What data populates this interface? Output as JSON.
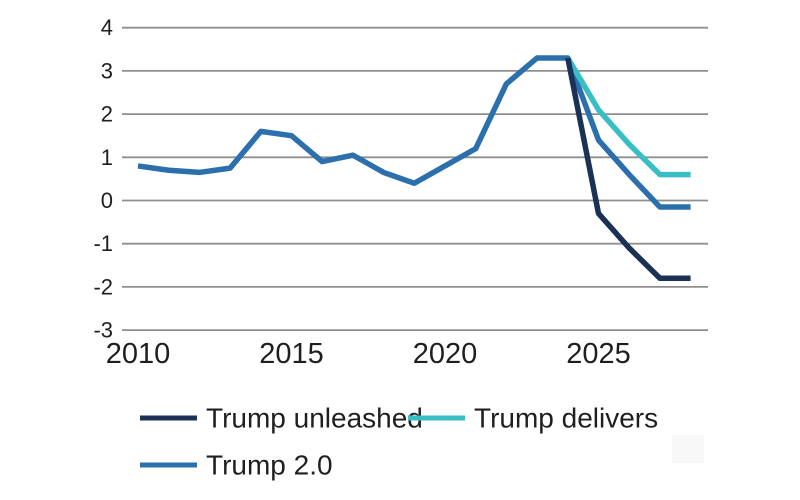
{
  "chart_data": {
    "type": "line",
    "title": "",
    "xlabel": "",
    "ylabel": "",
    "ylim": [
      -3,
      4
    ],
    "yticks": [
      4,
      3,
      2,
      1,
      0,
      -1,
      -2,
      -3
    ],
    "xticks": [
      2010,
      2015,
      2020,
      2025
    ],
    "x_range": [
      2010,
      2028
    ],
    "grid": "horizontal",
    "grid_color": "#8f8f8f",
    "background_color": "#ffffff",
    "legend_position": "bottom",
    "series": [
      {
        "name": "Trump 2.0",
        "color": "#2b6fad",
        "note": "includes shared actual history 2010-2024",
        "x": [
          2010,
          2011,
          2012,
          2013,
          2014,
          2015,
          2016,
          2017,
          2018,
          2019,
          2020,
          2021,
          2022,
          2023,
          2024,
          2025,
          2026,
          2027,
          2028
        ],
        "values": [
          0.8,
          0.7,
          0.65,
          0.75,
          1.6,
          1.5,
          0.9,
          1.05,
          0.65,
          0.4,
          0.8,
          1.2,
          2.7,
          3.3,
          3.3,
          1.4,
          0.6,
          -0.15,
          -0.15
        ]
      },
      {
        "name": "Trump delivers",
        "color": "#39bec6",
        "x": [
          2024,
          2025,
          2026,
          2027,
          2028
        ],
        "values": [
          3.3,
          2.1,
          1.3,
          0.6,
          0.6
        ]
      },
      {
        "name": "Trump unleashed",
        "color": "#1b3156",
        "x": [
          2024,
          2025,
          2026,
          2027,
          2028
        ],
        "values": [
          3.3,
          -0.3,
          -1.1,
          -1.8,
          -1.8
        ]
      }
    ],
    "legend": [
      {
        "label": "Trump unleashed",
        "color": "#1b3156"
      },
      {
        "label": "Trump delivers",
        "color": "#39bec6"
      },
      {
        "label": "Trump 2.0",
        "color": "#2b6fad"
      }
    ]
  }
}
